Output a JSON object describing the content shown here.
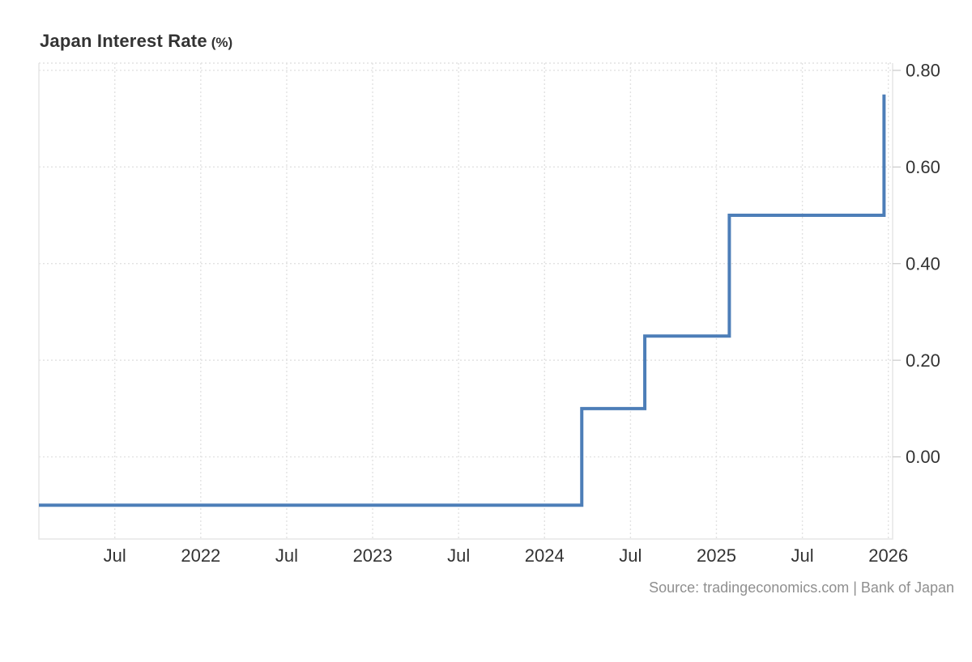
{
  "title": {
    "text": "Japan Interest Rate",
    "unit": "(%)"
  },
  "source": "Source: tradingeconomics.com | Bank of Japan",
  "colors": {
    "line": "#4d7eb8",
    "grid": "#e2e2e2",
    "plot_border": "#e6e6e6",
    "axis_tick": "#c9c9c9",
    "axis_label": "#333333",
    "title": "#333333",
    "source_text": "#8f8f8f",
    "background": "#ffffff"
  },
  "chart_data": {
    "type": "line",
    "step": "after",
    "title": "Japan Interest Rate (%)",
    "xlabel": "",
    "ylabel": "",
    "x_unit_note": "t = months since 2021-01-01, read from axis ticks",
    "xlim": [
      0.7,
      60.3
    ],
    "ylim": [
      -0.17,
      0.815
    ],
    "grid": true,
    "legend": "none",
    "y_axis": {
      "side": "right",
      "ticks": [
        {
          "label": "0.80",
          "value": 0.8
        },
        {
          "label": "0.60",
          "value": 0.6
        },
        {
          "label": "0.40",
          "value": 0.4
        },
        {
          "label": "0.20",
          "value": 0.2
        },
        {
          "label": "0.00",
          "value": 0.0
        }
      ]
    },
    "x_axis": {
      "ticks": [
        {
          "label": "Jul",
          "t": 6
        },
        {
          "label": "2022",
          "t": 12
        },
        {
          "label": "Jul",
          "t": 18
        },
        {
          "label": "2023",
          "t": 24
        },
        {
          "label": "Jul",
          "t": 30
        },
        {
          "label": "2024",
          "t": 36
        },
        {
          "label": "Jul",
          "t": 42
        },
        {
          "label": "2025",
          "t": 48
        },
        {
          "label": "Jul",
          "t": 54
        },
        {
          "label": "2026",
          "t": 60
        }
      ]
    },
    "series": [
      {
        "name": "Japan Interest Rate",
        "color": "#4d7eb8",
        "points": [
          {
            "date": "2021-01",
            "t": 0.7,
            "value": -0.1
          },
          {
            "date": "2024-03",
            "t": 38.6,
            "value": 0.1
          },
          {
            "date": "2024-08",
            "t": 43.0,
            "value": 0.25
          },
          {
            "date": "2025-01",
            "t": 48.9,
            "value": 0.5
          },
          {
            "date": "2025-12",
            "t": 59.7,
            "value": 0.75
          }
        ]
      }
    ]
  }
}
